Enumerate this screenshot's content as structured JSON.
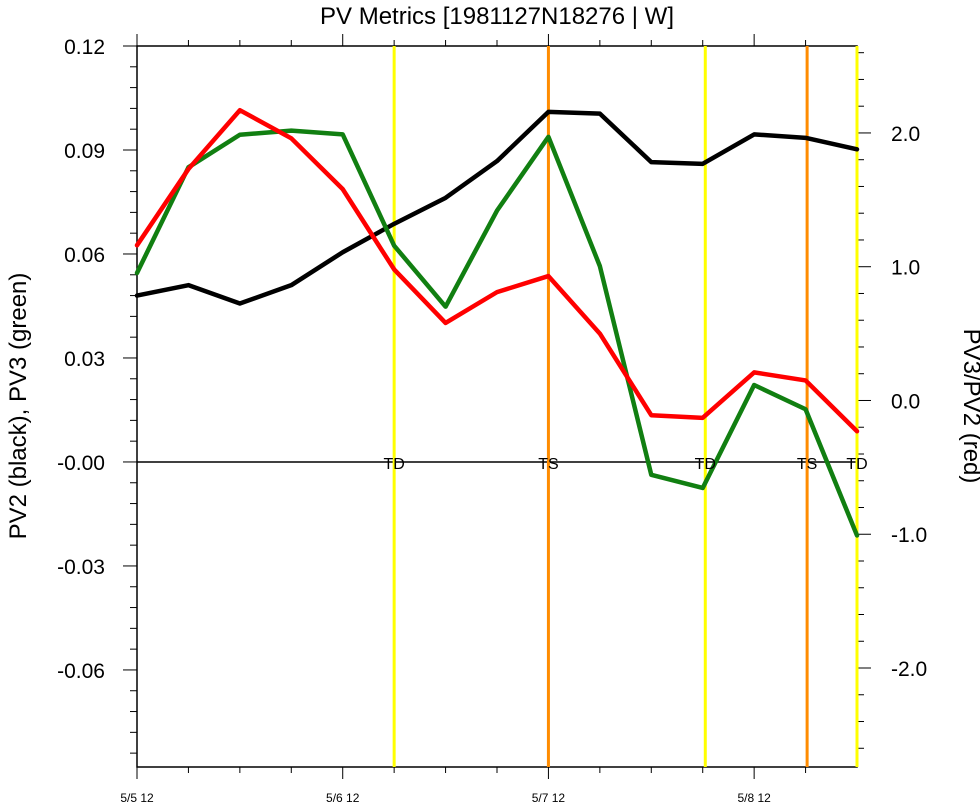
{
  "chart_data": {
    "type": "line",
    "title": "PV Metrics [1981127N18276 | W]",
    "ylabel_left": "PV2 (black), PV3 (green)",
    "ylabel_right": "PV3/PV2 (red)",
    "x_tick_labels": [
      "5/5 12",
      "5/6 12",
      "5/7 12",
      "5/8 12"
    ],
    "y_left_ticks": [
      "0.12",
      "0.09",
      "0.06",
      "0.03",
      "-0.00",
      "-0.03",
      "-0.06"
    ],
    "y_right_ticks": [
      "2.0",
      "1.0",
      "0.0",
      "-1.0",
      "-2.0"
    ],
    "ylim_left": [
      -0.088,
      0.12
    ],
    "ylim_right": [
      -2.74,
      2.65
    ],
    "x_steps_per_day": 4,
    "x_range_steps": [
      0,
      14
    ],
    "x": [
      0,
      1,
      2,
      3,
      4,
      5,
      6,
      7,
      8,
      9,
      10,
      11,
      12,
      13,
      14
    ],
    "series": [
      {
        "axis": "left",
        "color": "#000000",
        "values": [
          0.048,
          0.051,
          0.0457,
          0.051,
          0.0605,
          0.0687,
          0.0762,
          0.0868,
          0.101,
          0.1005,
          0.0865,
          0.086,
          0.0945,
          0.0935,
          0.0902
        ]
      },
      {
        "axis": "left",
        "color": "#117f11",
        "values": [
          0.0545,
          0.085,
          0.0944,
          0.0956,
          0.0945,
          0.0624,
          0.0448,
          0.0725,
          0.0938,
          0.0565,
          -0.0037,
          -0.0075,
          0.0222,
          0.0152,
          -0.0212
        ]
      },
      {
        "axis": "right",
        "color": "#ff0000",
        "values": [
          1.16,
          1.73,
          2.17,
          1.96,
          1.58,
          0.98,
          0.58,
          0.81,
          0.93,
          0.5,
          -0.11,
          -0.13,
          0.21,
          0.15,
          -0.23
        ]
      }
    ],
    "reference_lines": [
      {
        "x": 5.0,
        "color": "#ffff00",
        "label": "TD"
      },
      {
        "x": 8.0,
        "color": "#ff8c00",
        "label": "TS"
      },
      {
        "x": 11.05,
        "color": "#ffff00",
        "label": "TD"
      },
      {
        "x": 13.03,
        "color": "#ff8c00",
        "label": "TS"
      },
      {
        "x": 14.0,
        "color": "#ffff00",
        "label": "TD"
      }
    ],
    "zero_line": 0
  }
}
